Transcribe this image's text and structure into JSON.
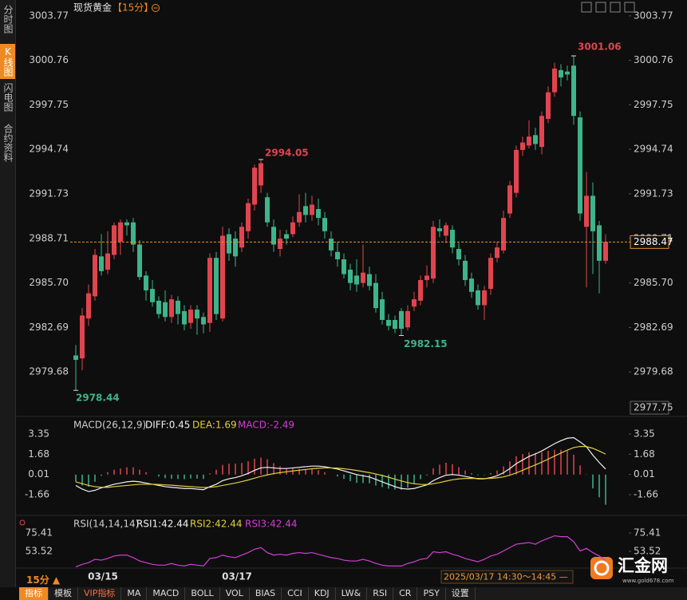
{
  "sidebar": [
    "分时图",
    "K线图",
    "闪电图",
    "合约资料"
  ],
  "chart_data": [
    {
      "type": "candlestick",
      "title": "现货黄金",
      "period": "【15分】",
      "categories": [
        null,
        null,
        null,
        null,
        "03/15",
        null,
        null,
        null,
        null,
        null,
        null,
        null,
        null,
        null,
        null,
        null,
        null,
        null,
        null,
        null,
        null,
        null,
        null,
        null,
        null,
        "03/17",
        null,
        null,
        null,
        null,
        null,
        null,
        null,
        null,
        null,
        null,
        null,
        null,
        null,
        null,
        null,
        null,
        null,
        null,
        null,
        null,
        null,
        null,
        null,
        null,
        null,
        null,
        null,
        null,
        null,
        null,
        null,
        null,
        null,
        null,
        null,
        null,
        null,
        null,
        null,
        null,
        null,
        null,
        null,
        null,
        null,
        null,
        null,
        null,
        null,
        null,
        null,
        null,
        null,
        null,
        null,
        null,
        null,
        null
      ],
      "open": [
        2980.8,
        2980.6,
        2983.3,
        2984.8,
        2987.5,
        2986.6,
        2987.6,
        2988.5,
        2989.8,
        2989.8,
        2988.3,
        2986.2,
        2985.3,
        2984.5,
        2984.4,
        2983.4,
        2984.5,
        2983.8,
        2983.0,
        2983.9,
        2983.4,
        2983.0,
        2987.4,
        2983.3,
        2989.0,
        2988.7,
        2988.1,
        2989.2,
        2991.0,
        2992.3,
        2991.5,
        2989.5,
        2988.0,
        2989.0,
        2989.0,
        2989.8,
        2990.9,
        2990.3,
        2990.7,
        2990.1,
        2988.7,
        2987.8,
        2987.3,
        2986.6,
        2986.2,
        2985.7,
        2986.3,
        2985.7,
        2984.6,
        2983.2,
        2983.2,
        2983.8,
        2982.7,
        2984.1,
        2984.5,
        2985.9,
        2986.0,
        2989.4,
        2988.9,
        2989.3,
        2988.0,
        2987.2,
        2986.0,
        2985.2,
        2984.2,
        2985.3,
        2987.4,
        2987.9,
        2990.4,
        2991.8,
        2994.7,
        2995.0,
        2995.7,
        2994.9,
        2996.8,
        2998.6,
        3000.1,
        3000.0,
        3000.4,
        2996.9,
        2989.5,
        2991.6,
        2989.6,
        2987.2
      ],
      "high": [
        2981.5,
        2984.0,
        2985.6,
        2988.0,
        2989.0,
        2989.2,
        2989.8,
        2990.0,
        2990.0,
        2990.1,
        2988.6,
        2986.5,
        2985.9,
        2984.8,
        2985.2,
        2984.9,
        2984.8,
        2984.2,
        2984.2,
        2984.2,
        2983.7,
        2987.7,
        2987.8,
        2989.5,
        2989.4,
        2989.2,
        2989.8,
        2991.4,
        2993.7,
        2994.05,
        2991.8,
        2990.0,
        2989.3,
        2989.3,
        2990.2,
        2991.7,
        2991.8,
        2991.6,
        2991.4,
        2990.5,
        2989.2,
        2988.5,
        2987.7,
        2987.0,
        2987.3,
        2988.3,
        2986.8,
        2986.3,
        2985.1,
        2983.6,
        2983.5,
        2984.0,
        2984.2,
        2985.1,
        2986.2,
        2986.9,
        2989.9,
        2990.0,
        2989.8,
        2989.6,
        2988.4,
        2987.6,
        2986.4,
        2985.6,
        2985.5,
        2987.7,
        2988.5,
        2990.6,
        2992.6,
        2995.0,
        2995.6,
        2996.7,
        2996.2,
        2997.3,
        2999.0,
        3000.6,
        3000.5,
        3000.4,
        3001.06,
        2997.3,
        2993.2,
        2992.5,
        2989.9,
        2989.0
      ],
      "low": [
        2978.44,
        2979.8,
        2982.8,
        2984.5,
        2986.2,
        2986.3,
        2987.3,
        2987.6,
        2988.9,
        2987.8,
        2985.9,
        2984.5,
        2984.1,
        2983.3,
        2983.1,
        2983.0,
        2982.9,
        2982.5,
        2982.6,
        2982.2,
        2982.3,
        2982.4,
        2983.2,
        2983.1,
        2987.2,
        2986.8,
        2987.8,
        2988.7,
        2990.6,
        2991.8,
        2989.5,
        2987.8,
        2987.5,
        2988.3,
        2988.8,
        2989.5,
        2989.8,
        2989.9,
        2989.6,
        2988.7,
        2987.5,
        2986.8,
        2986.0,
        2985.2,
        2985.1,
        2985.4,
        2985.2,
        2983.7,
        2982.9,
        2982.5,
        2982.3,
        2982.15,
        2982.5,
        2983.8,
        2984.2,
        2985.4,
        2985.7,
        2988.8,
        2988.4,
        2987.7,
        2986.9,
        2985.5,
        2984.7,
        2983.9,
        2983.2,
        2984.9,
        2987.1,
        2987.7,
        2990.1,
        2991.5,
        2994.3,
        2994.8,
        2994.7,
        2994.4,
        2996.5,
        2998.3,
        2999.0,
        2999.4,
        2996.4,
        2989.9,
        2985.4,
        2986.3,
        2985.0,
        2987.0
      ],
      "close": [
        2980.5,
        2983.5,
        2985.0,
        2987.6,
        2986.5,
        2987.7,
        2989.6,
        2989.8,
        2989.6,
        2988.3,
        2986.1,
        2985.2,
        2984.4,
        2983.6,
        2983.4,
        2984.6,
        2983.6,
        2982.9,
        2983.9,
        2983.3,
        2982.9,
        2987.4,
        2983.6,
        2988.9,
        2987.7,
        2987.5,
        2989.5,
        2991.1,
        2993.5,
        2993.8,
        2989.8,
        2988.3,
        2988.7,
        2988.7,
        2989.8,
        2990.5,
        2990.3,
        2991.0,
        2990.1,
        2989.2,
        2987.9,
        2987.3,
        2986.3,
        2985.7,
        2985.6,
        2986.4,
        2985.5,
        2984.0,
        2983.2,
        2982.8,
        2982.6,
        2982.6,
        2983.8,
        2984.6,
        2985.9,
        2986.2,
        2989.5,
        2989.2,
        2989.6,
        2988.1,
        2987.3,
        2985.9,
        2985.1,
        2984.2,
        2985.2,
        2987.4,
        2988.1,
        2990.1,
        2992.3,
        2994.7,
        2995.2,
        2995.6,
        2995.1,
        2997.0,
        2998.6,
        3000.2,
        2999.6,
        2999.8,
        2997.0,
        2990.4,
        2991.6,
        2989.2,
        2987.2,
        2988.47
      ],
      "up_color": "#e0454f",
      "down_color": "#3db48a",
      "last_price_color": "#e8922e",
      "ylim": [
        2977.75,
        3004.3
      ],
      "yticks": [
        3003.77,
        3000.76,
        2997.75,
        2994.74,
        2991.73,
        2988.71,
        {
          "value": 2985.7,
          "label": "2985.70"
        },
        2982.69,
        2979.68
      ],
      "interval": "15分 ▲",
      "crosshair_time": "2025/03/17 14:30～14:45 —"
    },
    {
      "type": "macd",
      "legend": "MACD(26,12,9)",
      "series": [
        {
          "name": "DIFF:0.45",
          "color": "#f2f2f2",
          "values": [
            -0.9,
            -1.2,
            -1.4,
            -1.3,
            -1.1,
            -0.95,
            -0.8,
            -0.7,
            -0.6,
            -0.55,
            -0.6,
            -0.7,
            -0.8,
            -0.9,
            -1.0,
            -1.05,
            -1.1,
            -1.15,
            -1.15,
            -1.2,
            -1.25,
            -1.0,
            -0.8,
            -0.5,
            -0.35,
            -0.25,
            -0.1,
            0.1,
            0.35,
            0.55,
            0.6,
            0.55,
            0.5,
            0.5,
            0.55,
            0.6,
            0.65,
            0.7,
            0.7,
            0.65,
            0.55,
            0.45,
            0.3,
            0.15,
            0.0,
            -0.1,
            -0.2,
            -0.4,
            -0.6,
            -0.8,
            -1.0,
            -1.15,
            -1.2,
            -1.15,
            -1.0,
            -0.85,
            -0.5,
            -0.25,
            -0.05,
            0.0,
            -0.05,
            -0.15,
            -0.25,
            -0.35,
            -0.35,
            -0.25,
            -0.1,
            0.15,
            0.5,
            0.9,
            1.2,
            1.5,
            1.7,
            1.95,
            2.25,
            2.55,
            2.8,
            3.0,
            3.05,
            2.7,
            2.3,
            1.6,
            1.0,
            0.45
          ]
        },
        {
          "name": "DEA:1.69",
          "color": "#e3cf3c",
          "values": [
            -0.6,
            -0.75,
            -0.9,
            -1.0,
            -1.05,
            -1.05,
            -1.0,
            -0.95,
            -0.9,
            -0.85,
            -0.8,
            -0.8,
            -0.8,
            -0.82,
            -0.85,
            -0.88,
            -0.92,
            -0.96,
            -0.99,
            -1.03,
            -1.07,
            -1.05,
            -1.0,
            -0.9,
            -0.8,
            -0.7,
            -0.58,
            -0.45,
            -0.3,
            -0.15,
            -0.03,
            0.08,
            0.16,
            0.23,
            0.3,
            0.36,
            0.42,
            0.48,
            0.52,
            0.55,
            0.55,
            0.53,
            0.48,
            0.42,
            0.34,
            0.25,
            0.16,
            0.05,
            -0.08,
            -0.22,
            -0.38,
            -0.53,
            -0.66,
            -0.76,
            -0.81,
            -0.82,
            -0.76,
            -0.66,
            -0.54,
            -0.43,
            -0.36,
            -0.32,
            -0.31,
            -0.32,
            -0.33,
            -0.31,
            -0.27,
            -0.19,
            -0.05,
            0.14,
            0.35,
            0.58,
            0.8,
            1.03,
            1.27,
            1.53,
            1.78,
            2.02,
            2.23,
            2.32,
            2.31,
            2.17,
            1.94,
            1.69
          ]
        }
      ],
      "histogram": {
        "name": "MACD:-2.49",
        "color": "#d23fd4",
        "up_color": "#e0454f",
        "down_color": "#3db48a",
        "values": [
          -0.6,
          -0.9,
          -1.0,
          -0.6,
          -0.1,
          0.2,
          0.4,
          0.5,
          0.6,
          0.6,
          0.4,
          0.2,
          0.0,
          -0.16,
          -0.3,
          -0.34,
          -0.36,
          -0.38,
          -0.32,
          -0.34,
          -0.36,
          0.1,
          0.4,
          0.8,
          0.9,
          0.9,
          0.96,
          1.1,
          1.3,
          1.4,
          1.26,
          0.94,
          0.68,
          0.54,
          0.5,
          0.48,
          0.46,
          0.44,
          0.36,
          0.2,
          0.0,
          -0.16,
          -0.36,
          -0.54,
          -0.68,
          -0.7,
          -0.72,
          -0.9,
          -1.04,
          -1.16,
          -1.24,
          -1.24,
          -1.08,
          -0.78,
          -0.38,
          -0.06,
          0.52,
          0.82,
          0.98,
          0.86,
          0.62,
          0.34,
          0.12,
          -0.06,
          -0.04,
          0.12,
          0.34,
          0.68,
          1.1,
          1.52,
          1.7,
          1.84,
          1.8,
          1.84,
          1.96,
          2.04,
          2.04,
          1.96,
          1.64,
          0.76,
          -0.02,
          -1.14,
          -1.88,
          -2.49
        ]
      },
      "ylim": [
        -2.98,
        4.27
      ],
      "yticks": [
        3.35,
        1.68,
        0.01,
        -1.66
      ]
    },
    {
      "type": "line",
      "legend": "RSI(14,14,14)",
      "series": [
        {
          "name": "RSI1:42.44",
          "color": "#f2f2f2"
        },
        {
          "name": "RSI2:42.44",
          "color": "#e3cf3c"
        },
        {
          "name": "RSI3:42.44",
          "color": "#d23fd4",
          "values": [
            35,
            38,
            40,
            44,
            43,
            45,
            48,
            49,
            49,
            46,
            42,
            40,
            38,
            37,
            37,
            39,
            37,
            36,
            38,
            37,
            36,
            45,
            46,
            49,
            47,
            46,
            49,
            52,
            56,
            58,
            52,
            49,
            50,
            49,
            51,
            52,
            51,
            52,
            50,
            48,
            46,
            45,
            43,
            42,
            42,
            44,
            42,
            39,
            37,
            36,
            36,
            36,
            39,
            41,
            44,
            45,
            53,
            52,
            53,
            50,
            48,
            45,
            43,
            41,
            44,
            48,
            50,
            54,
            58,
            62,
            63,
            64,
            62,
            66,
            69,
            72,
            71,
            71,
            65,
            54,
            57,
            52,
            48,
            42.44
          ]
        }
      ],
      "ylim": [
        6.85,
        94.45
      ],
      "yticks": [
        75.41,
        53.52
      ]
    }
  ],
  "logo": {
    "name": "汇金网",
    "url": "www.gold678.com"
  },
  "tabs": [
    "指标",
    "模板",
    "VIP指标",
    "MA",
    "MACD",
    "BOLL",
    "VOL",
    "BIAS",
    "CCI",
    "KDJ",
    "LW&",
    "RSI",
    "CR",
    "PSY",
    "设置"
  ]
}
